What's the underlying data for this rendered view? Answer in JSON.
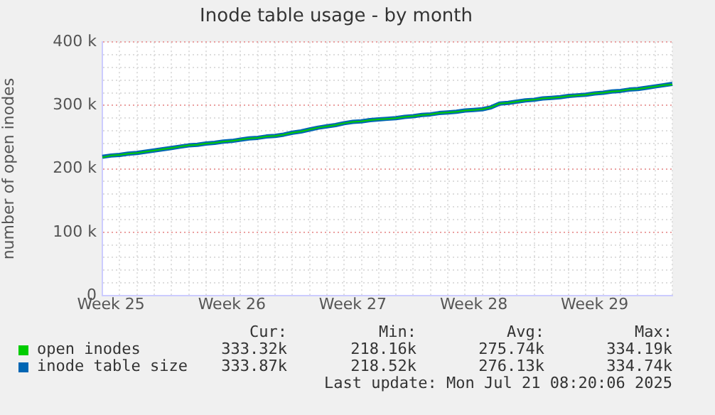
{
  "chart_data": {
    "type": "line",
    "title": "Inode table usage - by month",
    "ylabel": "number of open inodes",
    "categories": [
      null,
      "Week 25",
      null,
      null,
      null,
      null,
      null,
      null,
      null,
      null,
      null,
      null,
      null,
      null,
      null,
      "Week 26",
      null,
      null,
      null,
      null,
      null,
      null,
      null,
      null,
      null,
      null,
      null,
      null,
      null,
      "Week 27",
      null,
      null,
      null,
      null,
      null,
      null,
      null,
      null,
      null,
      null,
      null,
      null,
      null,
      "Week 28",
      null,
      null,
      null,
      null,
      null,
      null,
      null,
      null,
      null,
      null,
      null,
      null,
      null,
      "Week 29",
      null,
      null,
      null,
      null,
      null,
      null,
      null,
      null,
      null
    ],
    "series": [
      {
        "name": "open inodes",
        "color": "#00cc00",
        "values": [
          218000,
          221000,
          222000,
          224000,
          225000,
          227000,
          229000,
          231000,
          233000,
          235000,
          237000,
          238000,
          240000,
          241000,
          243000,
          244000,
          246000,
          248000,
          249000,
          251000,
          252000,
          254000,
          257000,
          259000,
          262000,
          265000,
          267000,
          269000,
          272000,
          274000,
          275000,
          277000,
          278000,
          279000,
          280000,
          282000,
          283000,
          285000,
          286000,
          288000,
          289000,
          290000,
          292000,
          293000,
          294000,
          297000,
          303000,
          304000,
          306000,
          308000,
          309000,
          311000,
          312000,
          313000,
          315000,
          316000,
          317000,
          319000,
          320000,
          322000,
          323000,
          325000,
          326000,
          328000,
          330000,
          332000,
          333000
        ]
      },
      {
        "name": "inode table size",
        "color": "#0066b3",
        "values": [
          219000,
          221000,
          222000,
          224000,
          225000,
          227000,
          229000,
          231000,
          233000,
          235000,
          237000,
          238000,
          240000,
          241000,
          243000,
          244000,
          246000,
          248000,
          249000,
          251000,
          252000,
          254000,
          257000,
          259000,
          262000,
          265000,
          267000,
          269000,
          272000,
          274000,
          275000,
          277000,
          278000,
          279000,
          280000,
          282000,
          283000,
          285000,
          286000,
          288000,
          289000,
          290000,
          292000,
          293000,
          294000,
          297000,
          303000,
          304000,
          306000,
          308000,
          309000,
          311000,
          312000,
          313000,
          315000,
          316000,
          317000,
          319000,
          320000,
          322000,
          323000,
          325000,
          326000,
          328000,
          330000,
          332000,
          334000
        ]
      }
    ],
    "ylim": [
      0,
      400000
    ],
    "yticks": [
      0,
      {
        "value": 20000,
        "label": null
      },
      {
        "value": 40000,
        "label": null
      },
      {
        "value": 60000,
        "label": null
      },
      {
        "value": 80000,
        "label": null
      },
      {
        "value": 100000,
        "label": "100 k"
      },
      {
        "value": 120000,
        "label": null
      },
      {
        "value": 140000,
        "label": null
      },
      {
        "value": 160000,
        "label": null
      },
      {
        "value": 180000,
        "label": null
      },
      {
        "value": 200000,
        "label": "200 k"
      },
      {
        "value": 220000,
        "label": null
      },
      {
        "value": 240000,
        "label": null
      },
      {
        "value": 260000,
        "label": null
      },
      {
        "value": 280000,
        "label": null
      },
      {
        "value": 300000,
        "label": "300 k"
      },
      {
        "value": 320000,
        "label": null
      },
      {
        "value": 340000,
        "label": null
      },
      {
        "value": 360000,
        "label": null
      },
      {
        "value": 380000,
        "label": null
      },
      {
        "value": 400000,
        "label": "400 k"
      }
    ],
    "grid": true,
    "legend": "bottom",
    "marker": "none",
    "line_style": "solid",
    "annotations": [
      "Cur:",
      "Min:",
      "Avg:",
      "Max:",
      "333.32k",
      "218.16k",
      "275.74k",
      "334.19k",
      "333.87k",
      "218.52k",
      "276.13k",
      "334.74k",
      "Last update: Mon Jul 21 08:20:06 2025"
    ]
  }
}
